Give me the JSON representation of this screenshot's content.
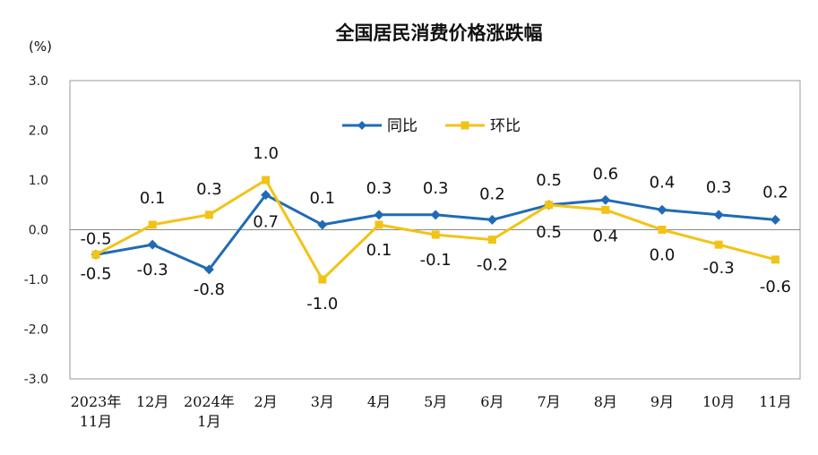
{
  "chart_data": {
    "type": "line",
    "title": "全国居民消费价格涨跌幅",
    "unit_label": "(%)",
    "ylim": [
      -3.0,
      3.0
    ],
    "yticks": [
      "3.0",
      "2.0",
      "1.0",
      "0.0",
      "-1.0",
      "-2.0",
      "-3.0"
    ],
    "categories": [
      [
        "2023年",
        "11月"
      ],
      [
        "12月"
      ],
      [
        "2024年",
        "1月"
      ],
      [
        "2月"
      ],
      [
        "3月"
      ],
      [
        "4月"
      ],
      [
        "5月"
      ],
      [
        "6月"
      ],
      [
        "7月"
      ],
      [
        "8月"
      ],
      [
        "9月"
      ],
      [
        "10月"
      ],
      [
        "11月"
      ]
    ],
    "series": [
      {
        "name": "同比",
        "color": "#1F6BB5",
        "marker": "diamond",
        "values": [
          -0.5,
          -0.3,
          -0.8,
          0.7,
          0.1,
          0.3,
          0.3,
          0.2,
          0.5,
          0.6,
          0.4,
          0.3,
          0.2
        ],
        "labels": [
          "-0.5",
          "-0.3",
          "-0.8",
          "0.7",
          "0.1",
          "0.3",
          "0.3",
          "0.2",
          "0.5",
          "0.6",
          "0.4",
          "0.3",
          "0.2"
        ]
      },
      {
        "name": "环比",
        "color": "#F2C315",
        "marker": "square",
        "values": [
          -0.5,
          0.1,
          0.3,
          1.0,
          -1.0,
          0.1,
          -0.1,
          -0.2,
          0.5,
          0.4,
          0.0,
          -0.3,
          -0.6
        ],
        "labels": [
          "-0.5",
          "0.1",
          "0.3",
          "1.0",
          "-1.0",
          "0.1",
          "-0.1",
          "-0.2",
          "0.5",
          "0.4",
          "0.0",
          "-0.3",
          "-0.6"
        ]
      }
    ],
    "grid": false,
    "legend_position": "top-center"
  }
}
